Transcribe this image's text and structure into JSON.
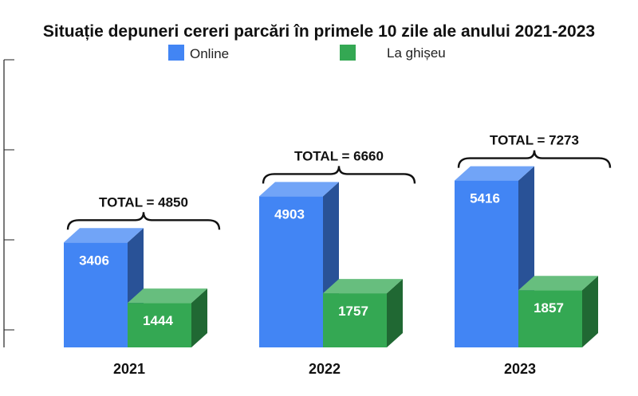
{
  "chart_data": {
    "type": "bar",
    "title": "Situație depuneri cereri parcări în primele 10 zile ale anului 2021-2023",
    "categories": [
      "2021",
      "2022",
      "2023"
    ],
    "series": [
      {
        "name": "Online",
        "values": [
          3406,
          4903,
          5416
        ],
        "color": "#4285f4"
      },
      {
        "name": "La ghișeu",
        "values": [
          1444,
          1757,
          1857
        ],
        "color": "#34a853"
      }
    ],
    "totals": [
      "TOTAL = 4850",
      "TOTAL = 6660",
      "TOTAL = 7273"
    ],
    "ylim": [
      0,
      6000
    ],
    "legend_position": "top",
    "grid": false,
    "style": "3d-columns"
  }
}
